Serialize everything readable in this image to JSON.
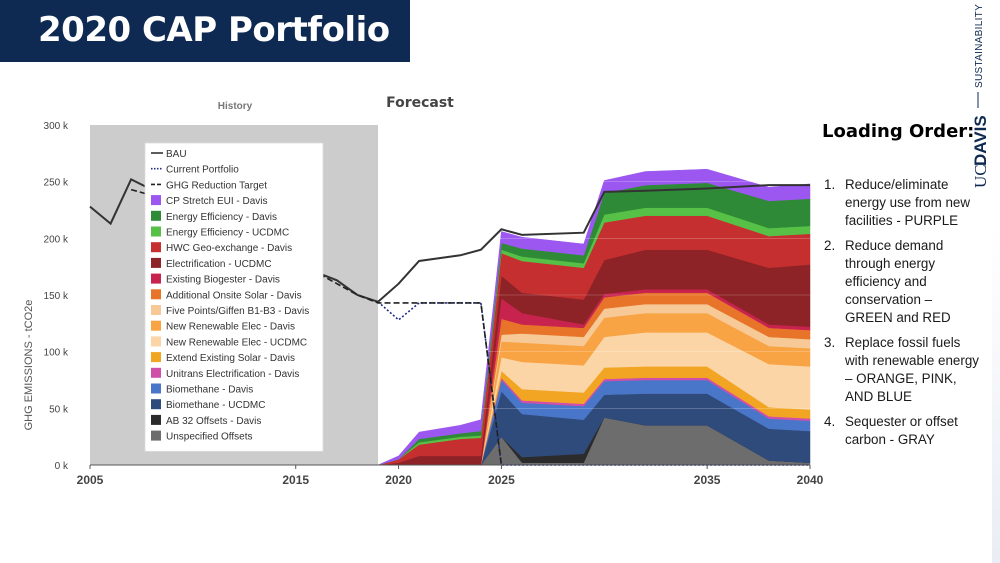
{
  "slide": {
    "title": "2020 CAP Portfolio",
    "brand_uc": "UC",
    "brand_davis": "DAVIS",
    "brand_sub": "SUSTAINABILITY"
  },
  "loading_order": {
    "title": "Loading Order:",
    "items": [
      {
        "num": "1.",
        "text": "Reduce/eliminate energy use from new facilities - PURPLE"
      },
      {
        "num": "2.",
        "text": "Reduce demand through energy efficiency and conservation – GREEN and RED"
      },
      {
        "num": "3.",
        "text": "Replace fossil fuels with renewable energy – ORANGE, PINK, AND BLUE"
      },
      {
        "num": "4.",
        "text": "Sequester or offset carbon - GRAY"
      }
    ]
  },
  "chart_data": {
    "type": "area",
    "title": "Forecast",
    "history_label": "History",
    "ylabel": "GHG EMISSIONS - tCO2e",
    "xlabel": "",
    "xlim": [
      2005,
      2040
    ],
    "ylim": [
      0,
      300000
    ],
    "x_ticks": [
      2005,
      2015,
      2020,
      2025,
      2035,
      2040
    ],
    "y_ticks": [
      {
        "v": 0,
        "label": "0 k"
      },
      {
        "v": 50000,
        "label": "50 k"
      },
      {
        "v": 100000,
        "label": "100 k"
      },
      {
        "v": 150000,
        "label": "150 k"
      },
      {
        "v": 200000,
        "label": "200 k"
      },
      {
        "v": 250000,
        "label": "250 k"
      },
      {
        "v": 300000,
        "label": "300 k"
      }
    ],
    "history_range": [
      2005,
      2019
    ],
    "legend_position": "top-left",
    "x": [
      2019,
      2020,
      2021,
      2023,
      2024,
      2025,
      2026,
      2029,
      2030,
      2032,
      2035,
      2038,
      2040
    ],
    "series": [
      {
        "name": "Unspecified Offsets",
        "color": "#6d6d6d",
        "values": [
          0,
          0,
          0,
          0,
          0,
          25000,
          2000,
          2000,
          42000,
          35000,
          35000,
          4000,
          2000
        ]
      },
      {
        "name": "AB 32 Offsets - Davis",
        "color": "#2b2b2b",
        "values": [
          0,
          0,
          0,
          0,
          0,
          0,
          5000,
          8000,
          0,
          0,
          0,
          0,
          0
        ]
      },
      {
        "name": "Biomethane - UCDMC",
        "color": "#2f4b7c",
        "values": [
          0,
          0,
          0,
          0,
          0,
          40000,
          38000,
          30000,
          20000,
          28000,
          28000,
          28000,
          28000
        ]
      },
      {
        "name": "Biomethane - Davis",
        "color": "#4a76c9",
        "values": [
          0,
          0,
          0,
          0,
          0,
          10000,
          10000,
          12000,
          12000,
          12000,
          12000,
          9000,
          9000
        ]
      },
      {
        "name": "Unitrans Electrification - Davis",
        "color": "#d04fa8",
        "values": [
          0,
          0,
          0,
          0,
          0,
          2000,
          2000,
          2000,
          2000,
          2000,
          2000,
          2000,
          2000
        ]
      },
      {
        "name": "Extend Existing Solar - Davis",
        "color": "#f2a523",
        "values": [
          0,
          0,
          0,
          0,
          0,
          6000,
          10000,
          10000,
          10000,
          10000,
          10000,
          8000,
          8000
        ]
      },
      {
        "name": "New Renewable Elec - UCDMC",
        "color": "#fbd5a5",
        "values": [
          0,
          0,
          0,
          0,
          0,
          12000,
          24000,
          24000,
          27000,
          30000,
          30000,
          38000,
          38000
        ]
      },
      {
        "name": "New Renewable Elec - Davis",
        "color": "#f8a344",
        "values": [
          0,
          0,
          0,
          0,
          0,
          14000,
          17000,
          17000,
          17000,
          17000,
          17000,
          16000,
          16000
        ]
      },
      {
        "name": "Five Points/Giffen B1-B3 - Davis",
        "color": "#f6c996",
        "values": [
          0,
          0,
          0,
          0,
          0,
          6000,
          8000,
          8000,
          8000,
          8000,
          8000,
          8000,
          8000
        ]
      },
      {
        "name": "Additional Onsite Solar - Davis",
        "color": "#e8742a",
        "values": [
          0,
          0,
          0,
          0,
          0,
          14000,
          8000,
          8000,
          10000,
          10000,
          10000,
          8000,
          8000
        ]
      },
      {
        "name": "Existing Biogester - Davis",
        "color": "#c8234f",
        "values": [
          0,
          0,
          0,
          0,
          0,
          18000,
          10000,
          3000,
          3000,
          3000,
          3000,
          3000,
          3000
        ]
      },
      {
        "name": "Electrification - UCDMC",
        "color": "#8e2327",
        "values": [
          0,
          2000,
          8000,
          8000,
          8000,
          20000,
          18000,
          22000,
          30000,
          35000,
          35000,
          50000,
          55000
        ]
      },
      {
        "name": "HWC Geo-exchange - Davis",
        "color": "#c62f2f",
        "values": [
          0,
          3000,
          10000,
          15000,
          16000,
          20000,
          28000,
          28000,
          33000,
          30000,
          30000,
          28000,
          27000
        ]
      },
      {
        "name": "Energy Efficiency - UCDMC",
        "color": "#56c146",
        "values": [
          0,
          0,
          2000,
          2000,
          2000,
          3000,
          4000,
          4000,
          7000,
          7000,
          7000,
          7000,
          7000
        ]
      },
      {
        "name": "Energy Efficiency - Davis",
        "color": "#2f8a37",
        "values": [
          0,
          0,
          3000,
          3000,
          4000,
          6000,
          7000,
          7000,
          19000,
          20000,
          22000,
          24000,
          24000
        ]
      },
      {
        "name": "CP Stretch EUI - Davis",
        "color": "#9b57f0",
        "values": [
          0,
          3000,
          6000,
          7000,
          10000,
          10000,
          10000,
          10000,
          11000,
          12000,
          12000,
          12000,
          13000
        ]
      }
    ],
    "lines": [
      {
        "name": "BAU",
        "style": "solid",
        "color": "#333333",
        "x": [
          2005,
          2006,
          2007,
          2008,
          2016,
          2017,
          2018,
          2019,
          2020,
          2021,
          2023,
          2024,
          2025,
          2026,
          2029,
          2030,
          2032,
          2035,
          2038,
          2040
        ],
        "values": [
          228000,
          213000,
          252000,
          243000,
          170000,
          163000,
          150000,
          144000,
          160000,
          180000,
          185000,
          190000,
          208000,
          203000,
          205000,
          241000,
          242000,
          244000,
          247000,
          247000
        ]
      },
      {
        "name": "Current Portfolio",
        "style": "dotted",
        "color": "#1f2a8a",
        "x": [
          2019,
          2020,
          2021,
          2023,
          2024,
          2025,
          2040
        ],
        "values": [
          144000,
          128000,
          143000,
          143000,
          143000,
          0,
          0
        ]
      },
      {
        "name": "GHG Reduction Target",
        "style": "dashed",
        "color": "#222222",
        "x": [
          2007,
          2008,
          2015,
          2016,
          2017,
          2018,
          2019,
          2020,
          2021,
          2023,
          2024,
          2025
        ],
        "values": [
          243000,
          238000,
          175000,
          170000,
          160000,
          150000,
          143000,
          143000,
          143000,
          143000,
          143000,
          0
        ]
      }
    ]
  }
}
